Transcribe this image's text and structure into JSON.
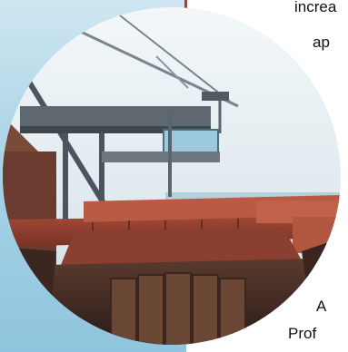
{
  "text_lines": [
    "increa",
    "ap",
    "A",
    "Prof"
  ],
  "colors": {
    "accent_red": "#d82a1f",
    "panel_blue": "#a9d3e6"
  }
}
